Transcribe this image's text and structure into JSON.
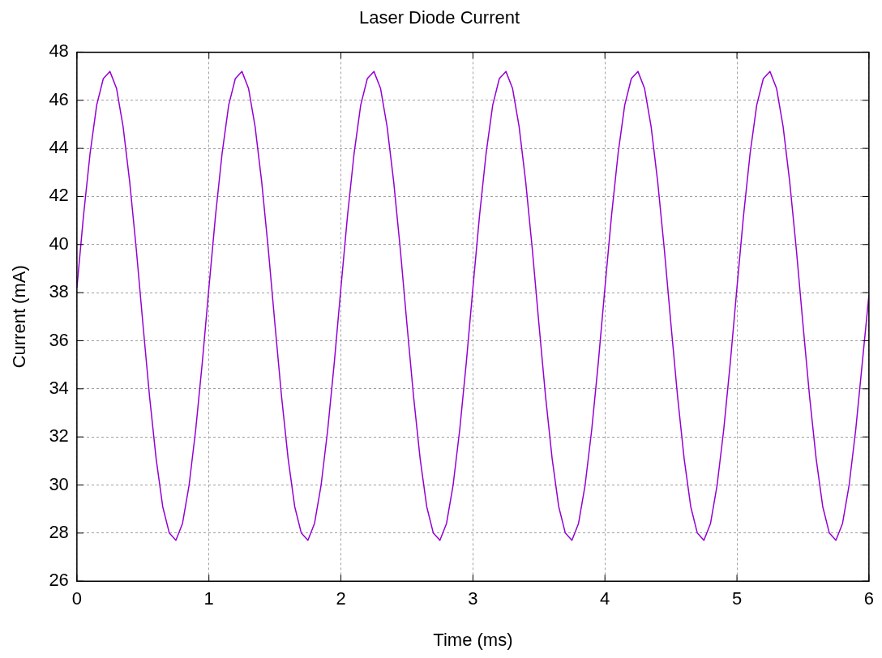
{
  "chart_data": {
    "type": "line",
    "title": "Laser Diode Current",
    "xlabel": "Time (ms)",
    "ylabel": "Current (mA)",
    "xlim": [
      0,
      6
    ],
    "xticks": [
      0,
      1,
      2,
      3,
      4,
      5,
      6
    ],
    "ylim": [
      26,
      48
    ],
    "yticks": [
      26,
      28,
      30,
      32,
      34,
      36,
      38,
      40,
      42,
      44,
      46,
      48
    ],
    "grid": true,
    "legend": false,
    "marker": "none",
    "line_style": "solid",
    "x": [
      0,
      0.05,
      0.1,
      0.15,
      0.2,
      0.25,
      0.3,
      0.35,
      0.4,
      0.45,
      0.5,
      0.55,
      0.6,
      0.65,
      0.7,
      0.75,
      0.8,
      0.85,
      0.9,
      0.95,
      1,
      1.05,
      1.1,
      1.15,
      1.2,
      1.25,
      1.3,
      1.35,
      1.4,
      1.45,
      1.5,
      1.55,
      1.6,
      1.65,
      1.7,
      1.75,
      1.8,
      1.85,
      1.9,
      1.95,
      2,
      2.05,
      2.1,
      2.15,
      2.2,
      2.25,
      2.3,
      2.35,
      2.4,
      2.45,
      2.5,
      2.55,
      2.6,
      2.65,
      2.7,
      2.75,
      2.8,
      2.85,
      2.9,
      2.95,
      3,
      3.05,
      3.1,
      3.15,
      3.2,
      3.25,
      3.3,
      3.35,
      3.4,
      3.45,
      3.5,
      3.55,
      3.6,
      3.65,
      3.7,
      3.75,
      3.8,
      3.85,
      3.9,
      3.95,
      4,
      4.05,
      4.1,
      4.15,
      4.2,
      4.25,
      4.3,
      4.35,
      4.4,
      4.45,
      4.5,
      4.55,
      4.6,
      4.65,
      4.7,
      4.75,
      4.8,
      4.85,
      4.9,
      4.95,
      5,
      5.05,
      5.1,
      5.15,
      5.2,
      5.25,
      5.3,
      5.35,
      5.4,
      5.45,
      5.5,
      5.55,
      5.6,
      5.65,
      5.7,
      5.75,
      5.8,
      5.85,
      5.9,
      5.95,
      6
    ],
    "series": [
      {
        "color": "#9400d3",
        "values": [
          38.2,
          41.2,
          43.8,
          45.8,
          46.9,
          47.2,
          46.5,
          44.9,
          42.6,
          39.8,
          36.7,
          33.7,
          31.1,
          29.1,
          28.0,
          27.7,
          28.4,
          30.0,
          32.3,
          35.1,
          38.2,
          41.2,
          43.8,
          45.8,
          46.9,
          47.2,
          46.5,
          44.9,
          42.6,
          39.8,
          36.7,
          33.7,
          31.1,
          29.1,
          28.0,
          27.7,
          28.4,
          30.0,
          32.3,
          35.1,
          38.2,
          41.2,
          43.8,
          45.8,
          46.9,
          47.2,
          46.5,
          44.9,
          42.6,
          39.8,
          36.7,
          33.7,
          31.1,
          29.1,
          28.0,
          27.7,
          28.4,
          30.0,
          32.3,
          35.1,
          38.2,
          41.2,
          43.8,
          45.8,
          46.9,
          47.2,
          46.5,
          44.9,
          42.6,
          39.8,
          36.7,
          33.7,
          31.1,
          29.1,
          28.0,
          27.7,
          28.4,
          30.0,
          32.3,
          35.1,
          38.2,
          41.2,
          43.8,
          45.8,
          46.9,
          47.2,
          46.5,
          44.9,
          42.6,
          39.8,
          36.7,
          33.7,
          31.1,
          29.1,
          28.0,
          27.7,
          28.4,
          30.0,
          32.3,
          35.1,
          38.2,
          41.2,
          43.8,
          45.8,
          46.9,
          47.2,
          46.5,
          44.9,
          42.6,
          39.8,
          36.7,
          33.7,
          31.1,
          29.1,
          28.0,
          27.7,
          28.4,
          30.0,
          32.3,
          35.1,
          37.9
        ]
      }
    ]
  }
}
